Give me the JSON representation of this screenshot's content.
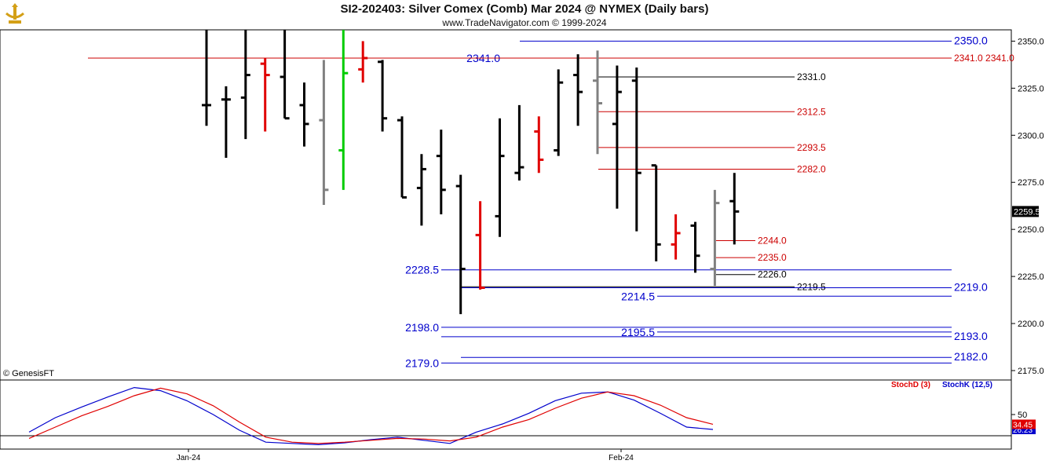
{
  "header": {
    "title": "SI2-202403:  Silver Comex (Comb) Mar 2024 @ NYMEX  (Daily bars)",
    "subtitle": "www.TradeNavigator.com © 1999-2024",
    "watermark": "© GenesisFT"
  },
  "colors": {
    "up": "#000000",
    "down": "#e00000",
    "neutral": "#808080",
    "special": "#00cc00",
    "blue": "#0000cc",
    "red": "#cc0000"
  },
  "chart_data": {
    "type": "ohlc",
    "price_axis": {
      "ylim": [
        2170,
        2356
      ],
      "ticks": [
        2175.0,
        2200.0,
        2225.0,
        2250.0,
        2275.0,
        2300.0,
        2325.0,
        2350.0
      ],
      "last_price": "2259.5"
    },
    "x_labels": [
      {
        "label": "Jan-24",
        "index": 4
      },
      {
        "label": "Feb-24",
        "index": 25
      }
    ],
    "bars": [
      {
        "o": 2316,
        "h": 2356,
        "l": 2305,
        "c": 2316,
        "color": "up"
      },
      {
        "o": 2319,
        "h": 2326,
        "l": 2288,
        "c": 2319,
        "color": "up"
      },
      {
        "o": 2320,
        "h": 2356,
        "l": 2298,
        "c": 2332,
        "color": "up"
      },
      {
        "o": 2338,
        "h": 2341,
        "l": 2302,
        "c": 2332,
        "color": "down"
      },
      {
        "o": 2331,
        "h": 2356,
        "l": 2309,
        "c": 2309,
        "color": "up"
      },
      {
        "o": 2316,
        "h": 2328,
        "l": 2294,
        "c": 2306,
        "color": "up"
      },
      {
        "o": 2308,
        "h": 2340,
        "l": 2263,
        "c": 2271,
        "color": "neutral"
      },
      {
        "o": 2292,
        "h": 2356,
        "l": 2271,
        "c": 2333,
        "color": "special"
      },
      {
        "o": 2335,
        "h": 2350,
        "l": 2328,
        "c": 2341,
        "color": "down"
      },
      {
        "o": 2339,
        "h": 2340,
        "l": 2302,
        "c": 2309,
        "color": "up"
      },
      {
        "o": 2308,
        "h": 2310,
        "l": 2267,
        "c": 2267,
        "color": "up"
      },
      {
        "o": 2272,
        "h": 2290,
        "l": 2252,
        "c": 2282,
        "color": "up"
      },
      {
        "o": 2289,
        "h": 2303,
        "l": 2258,
        "c": 2271,
        "color": "up"
      },
      {
        "o": 2273,
        "h": 2279,
        "l": 2205,
        "c": 2229,
        "color": "up"
      },
      {
        "o": 2247,
        "h": 2265,
        "l": 2218,
        "c": 2219,
        "color": "down"
      },
      {
        "o": 2257,
        "h": 2309,
        "l": 2246,
        "c": 2289,
        "color": "up"
      },
      {
        "o": 2280,
        "h": 2316,
        "l": 2276,
        "c": 2283,
        "color": "up"
      },
      {
        "o": 2302,
        "h": 2310,
        "l": 2280,
        "c": 2287,
        "color": "down"
      },
      {
        "o": 2292,
        "h": 2335,
        "l": 2289,
        "c": 2328,
        "color": "up"
      },
      {
        "o": 2332,
        "h": 2343,
        "l": 2305,
        "c": 2323,
        "color": "up"
      },
      {
        "o": 2329,
        "h": 2345,
        "l": 2290,
        "c": 2317,
        "color": "neutral"
      },
      {
        "o": 2306,
        "h": 2337,
        "l": 2261,
        "c": 2323,
        "color": "up"
      },
      {
        "o": 2329,
        "h": 2336,
        "l": 2249,
        "c": 2280,
        "color": "up"
      },
      {
        "o": 2284,
        "h": 2284,
        "l": 2233,
        "c": 2242,
        "color": "up"
      },
      {
        "o": 2242,
        "h": 2258,
        "l": 2234,
        "c": 2248,
        "color": "down"
      },
      {
        "o": 2252,
        "h": 2254,
        "l": 2227,
        "c": 2236,
        "color": "up"
      },
      {
        "o": 2229,
        "h": 2271,
        "l": 2220,
        "c": 2264,
        "color": "neutral"
      },
      {
        "o": 2265,
        "h": 2280,
        "l": 2242,
        "c": 2259.5,
        "color": "up"
      }
    ],
    "levels": [
      {
        "value": 2350.0,
        "label": "2350.0",
        "color": "blue",
        "x1": 662,
        "x2": 1212,
        "label_pos": "right"
      },
      {
        "value": 2341.0,
        "label": "2341.0",
        "color": "blue",
        "x1": 640,
        "x2": 1212,
        "label_pos": "left"
      },
      {
        "value": 2341.0,
        "label": "2341.0   2341.0",
        "color": "red",
        "x1": 112,
        "x2": 1212,
        "label_pos": "right"
      },
      {
        "value": 2331.0,
        "label": "2331.0",
        "color": "up",
        "x1": 762,
        "x2": 1012,
        "label_pos": "right"
      },
      {
        "value": 2312.5,
        "label": "2312.5",
        "color": "red",
        "x1": 762,
        "x2": 1012,
        "label_pos": "right"
      },
      {
        "value": 2293.5,
        "label": "2293.5",
        "color": "red",
        "x1": 762,
        "x2": 1012,
        "label_pos": "right"
      },
      {
        "value": 2282.0,
        "label": "2282.0",
        "color": "red",
        "x1": 762,
        "x2": 1012,
        "label_pos": "right"
      },
      {
        "value": 2244.0,
        "label": "2244.0",
        "color": "red",
        "x1": 912,
        "x2": 962,
        "label_pos": "right"
      },
      {
        "value": 2235.0,
        "label": "2235.0",
        "color": "red",
        "x1": 912,
        "x2": 962,
        "label_pos": "right"
      },
      {
        "value": 2228.5,
        "label": "2228.5",
        "color": "blue",
        "x1": 562,
        "x2": 1212,
        "label_pos": "left"
      },
      {
        "value": 2226.0,
        "label": "2226.0",
        "color": "up",
        "x1": 912,
        "x2": 962,
        "label_pos": "right"
      },
      {
        "value": 2219.5,
        "label": "2219.5",
        "color": "up",
        "x1": 587,
        "x2": 1012,
        "label_pos": "right"
      },
      {
        "value": 2219.0,
        "label": "2219.0",
        "color": "blue",
        "x1": 587,
        "x2": 1212,
        "label_pos": "right"
      },
      {
        "value": 2214.5,
        "label": "2214.5",
        "color": "blue",
        "x1": 837,
        "x2": 1212,
        "label_pos": "left"
      },
      {
        "value": 2198.0,
        "label": "2198.0",
        "color": "blue",
        "x1": 562,
        "x2": 1212,
        "label_pos": "left"
      },
      {
        "value": 2195.5,
        "label": "2195.5",
        "color": "blue",
        "x1": 837,
        "x2": 1212,
        "label_pos": "left"
      },
      {
        "value": 2193.0,
        "label": "2193.0",
        "color": "blue",
        "x1": 562,
        "x2": 1212,
        "label_pos": "right"
      },
      {
        "value": 2182.0,
        "label": "2182.0",
        "color": "blue",
        "x1": 587,
        "x2": 1212,
        "label_pos": "right"
      },
      {
        "value": 2179.0,
        "label": "2179.0",
        "color": "blue",
        "x1": 562,
        "x2": 1212,
        "label_pos": "left"
      }
    ],
    "stochastic": {
      "legend_d": "StochD (3)",
      "legend_k": "StochK (12,5)",
      "ylim": [
        0,
        100
      ],
      "tick": "50",
      "last_d": "34.45",
      "last_k": "26.23",
      "stoch_k": [
        [
          0,
          22
        ],
        [
          1,
          45
        ],
        [
          2,
          62
        ],
        [
          3,
          78
        ],
        [
          4,
          93
        ],
        [
          5,
          88
        ],
        [
          6,
          72
        ],
        [
          7,
          50
        ],
        [
          8,
          25
        ],
        [
          9,
          6
        ],
        [
          10,
          4
        ],
        [
          11,
          2
        ],
        [
          12,
          5
        ],
        [
          13,
          10
        ],
        [
          14,
          14
        ],
        [
          15,
          9
        ],
        [
          16,
          4
        ],
        [
          17,
          22
        ],
        [
          18,
          35
        ],
        [
          19,
          52
        ],
        [
          20,
          72
        ],
        [
          21,
          84
        ],
        [
          22,
          86
        ],
        [
          23,
          73
        ],
        [
          24,
          52
        ],
        [
          25,
          30
        ],
        [
          26,
          26.23
        ]
      ],
      "stoch_d": [
        [
          0,
          12
        ],
        [
          1,
          30
        ],
        [
          2,
          48
        ],
        [
          3,
          63
        ],
        [
          4,
          80
        ],
        [
          5,
          92
        ],
        [
          6,
          83
        ],
        [
          7,
          64
        ],
        [
          8,
          38
        ],
        [
          9,
          14
        ],
        [
          10,
          6
        ],
        [
          11,
          4
        ],
        [
          12,
          6
        ],
        [
          13,
          9
        ],
        [
          14,
          12
        ],
        [
          15,
          11
        ],
        [
          16,
          8
        ],
        [
          17,
          14
        ],
        [
          18,
          30
        ],
        [
          19,
          42
        ],
        [
          20,
          60
        ],
        [
          21,
          76
        ],
        [
          22,
          86
        ],
        [
          23,
          80
        ],
        [
          24,
          65
        ],
        [
          25,
          45
        ],
        [
          26,
          34.45
        ]
      ]
    }
  }
}
